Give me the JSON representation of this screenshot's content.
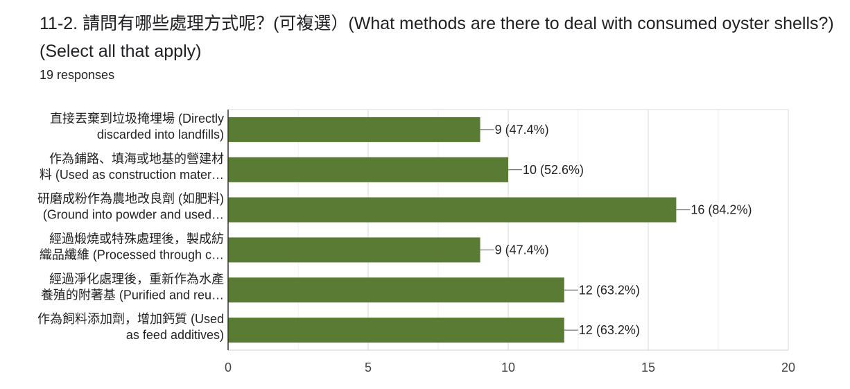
{
  "header": {
    "title": "11-2. 請問有哪些處理方式呢？(可複選）(What methods are there to deal with consumed oyster shells?) (Select all that apply)",
    "responses": "19 responses"
  },
  "chart_data": {
    "type": "bar",
    "orientation": "horizontal",
    "categories": [
      [
        "直接丟棄到垃圾掩埋場 (Directly",
        "discarded into landfills)"
      ],
      [
        "作為鋪路、填海或地基的營建材",
        "料 (Used as construction mater…"
      ],
      [
        "研磨成粉作為農地改良劑 (如肥料)",
        "(Ground into powder and used…"
      ],
      [
        "經過煅燒或特殊處理後，製成紡",
        "織品纖維 (Processed through c…"
      ],
      [
        "經過淨化處理後，重新作為水產",
        "養殖的附著基 (Purified and reu…"
      ],
      [
        "作為飼料添加劑，增加鈣質 (Used",
        "as feed additives)"
      ]
    ],
    "values": [
      9,
      10,
      16,
      9,
      12,
      12
    ],
    "value_labels": [
      "9 (47.4%)",
      "10 (52.6%)",
      "16 (84.2%)",
      "9 (47.4%)",
      "12 (63.2%)",
      "12 (63.2%)"
    ],
    "xlim": [
      0,
      20
    ],
    "x_ticks": [
      "0",
      "5",
      "10",
      "15",
      "20"
    ],
    "grid": true,
    "bar_color": "#5a7b34"
  }
}
